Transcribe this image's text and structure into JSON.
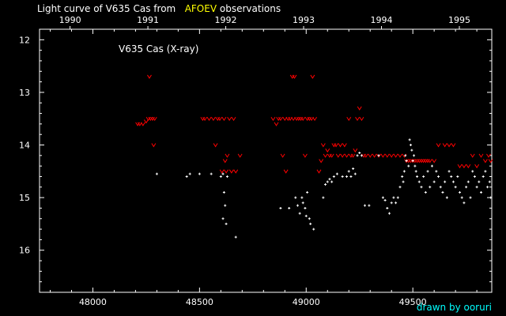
{
  "title": {
    "prefix": "Light curve of V635 Cas from",
    "highlight": "AFOEV",
    "suffix": "observations"
  },
  "credit": "drawn by ooruri",
  "colors": {
    "background": "#000000",
    "axes": "#ffffff",
    "upper_limit": "#ff0000",
    "detection": "#ffffff",
    "highlight": "#ffff00",
    "credit": "#00ffff"
  },
  "chart_data": {
    "type": "scatter",
    "title": "Light curve of V635 Cas from AFOEV observations",
    "plot_label": "V635 Cas (X-ray)",
    "xlabel": "",
    "ylabel": "",
    "xlim": [
      47750,
      49870
    ],
    "ylim": [
      16.8,
      11.8
    ],
    "x_ticks": [
      48000,
      48500,
      49000,
      49500
    ],
    "y_ticks": [
      12,
      13,
      14,
      15,
      16
    ],
    "top_axis": {
      "labels": [
        "1990",
        "1991",
        "1992",
        "1993",
        "1994",
        "1995"
      ],
      "values": [
        47893,
        48258,
        48623,
        48988,
        49353,
        49718
      ]
    },
    "series": [
      {
        "marker": "upper-limit",
        "color": "#ff0000",
        "points": [
          [
            48210,
            13.6
          ],
          [
            48220,
            13.6
          ],
          [
            48235,
            13.6
          ],
          [
            48250,
            13.55
          ],
          [
            48260,
            13.5
          ],
          [
            48265,
            12.7
          ],
          [
            48270,
            13.5
          ],
          [
            48280,
            13.5
          ],
          [
            48285,
            14.0
          ],
          [
            48290,
            13.5
          ],
          [
            48515,
            13.5
          ],
          [
            48525,
            13.5
          ],
          [
            48545,
            13.5
          ],
          [
            48565,
            13.5
          ],
          [
            48575,
            14.0
          ],
          [
            48585,
            13.5
          ],
          [
            48595,
            13.5
          ],
          [
            48605,
            14.5
          ],
          [
            48615,
            13.5
          ],
          [
            48620,
            14.3
          ],
          [
            48625,
            14.5
          ],
          [
            48630,
            14.2
          ],
          [
            48640,
            13.5
          ],
          [
            48650,
            14.5
          ],
          [
            48660,
            13.5
          ],
          [
            48670,
            14.5
          ],
          [
            48690,
            14.2
          ],
          [
            48845,
            13.5
          ],
          [
            48860,
            13.6
          ],
          [
            48870,
            13.5
          ],
          [
            48880,
            13.5
          ],
          [
            48890,
            14.2
          ],
          [
            48900,
            13.5
          ],
          [
            48905,
            14.5
          ],
          [
            48915,
            13.5
          ],
          [
            48925,
            13.5
          ],
          [
            48935,
            12.7
          ],
          [
            48940,
            13.5
          ],
          [
            48945,
            12.7
          ],
          [
            48955,
            13.5
          ],
          [
            48965,
            13.5
          ],
          [
            48975,
            13.5
          ],
          [
            48985,
            13.5
          ],
          [
            48995,
            14.2
          ],
          [
            49005,
            13.5
          ],
          [
            49015,
            13.5
          ],
          [
            49025,
            13.5
          ],
          [
            49030,
            12.7
          ],
          [
            49040,
            13.5
          ],
          [
            49060,
            14.5
          ],
          [
            49070,
            14.3
          ],
          [
            49080,
            14.0
          ],
          [
            49090,
            14.2
          ],
          [
            49100,
            14.1
          ],
          [
            49110,
            14.2
          ],
          [
            49120,
            14.2
          ],
          [
            49130,
            14.0
          ],
          [
            49140,
            14.0
          ],
          [
            49150,
            14.2
          ],
          [
            49160,
            14.0
          ],
          [
            49170,
            14.2
          ],
          [
            49180,
            14.0
          ],
          [
            49190,
            14.2
          ],
          [
            49200,
            13.5
          ],
          [
            49210,
            14.2
          ],
          [
            49220,
            14.2
          ],
          [
            49230,
            14.1
          ],
          [
            49240,
            13.5
          ],
          [
            49250,
            13.3
          ],
          [
            49260,
            13.5
          ],
          [
            49270,
            14.2
          ],
          [
            49280,
            14.2
          ],
          [
            49300,
            14.2
          ],
          [
            49320,
            14.2
          ],
          [
            49340,
            14.2
          ],
          [
            49360,
            14.2
          ],
          [
            49380,
            14.2
          ],
          [
            49400,
            14.2
          ],
          [
            49420,
            14.2
          ],
          [
            49440,
            14.2
          ],
          [
            49460,
            14.2
          ],
          [
            49470,
            14.3
          ],
          [
            49480,
            14.3
          ],
          [
            49490,
            14.3
          ],
          [
            49500,
            14.3
          ],
          [
            49510,
            14.3
          ],
          [
            49520,
            14.3
          ],
          [
            49530,
            14.3
          ],
          [
            49540,
            14.3
          ],
          [
            49550,
            14.3
          ],
          [
            49560,
            14.3
          ],
          [
            49570,
            14.3
          ],
          [
            49580,
            14.3
          ],
          [
            49600,
            14.3
          ],
          [
            49620,
            14.0
          ],
          [
            49650,
            14.0
          ],
          [
            49670,
            14.0
          ],
          [
            49690,
            14.0
          ],
          [
            49720,
            14.4
          ],
          [
            49740,
            14.4
          ],
          [
            49760,
            14.4
          ],
          [
            49780,
            14.2
          ],
          [
            49800,
            14.4
          ],
          [
            49820,
            14.2
          ],
          [
            49840,
            14.3
          ],
          [
            49855,
            14.2
          ],
          [
            49865,
            14.3
          ]
        ]
      },
      {
        "marker": "dot",
        "color": "#ffffff",
        "points": [
          [
            48300,
            14.55
          ],
          [
            48440,
            14.6
          ],
          [
            48455,
            14.55
          ],
          [
            48500,
            14.55
          ],
          [
            48555,
            14.55
          ],
          [
            48600,
            14.6
          ],
          [
            48610,
            14.55
          ],
          [
            48615,
            14.9
          ],
          [
            48620,
            15.15
          ],
          [
            48625,
            15.5
          ],
          [
            48610,
            15.4
          ],
          [
            48630,
            14.6
          ],
          [
            48670,
            15.75
          ],
          [
            48880,
            15.2
          ],
          [
            48920,
            15.2
          ],
          [
            48950,
            15.0
          ],
          [
            48960,
            15.15
          ],
          [
            48970,
            15.3
          ],
          [
            48980,
            15.0
          ],
          [
            48985,
            15.1
          ],
          [
            48995,
            15.2
          ],
          [
            49000,
            15.35
          ],
          [
            49005,
            14.9
          ],
          [
            49015,
            15.4
          ],
          [
            49020,
            15.5
          ],
          [
            49035,
            15.6
          ],
          [
            49080,
            15.0
          ],
          [
            49090,
            14.75
          ],
          [
            49100,
            14.7
          ],
          [
            49110,
            14.65
          ],
          [
            49120,
            14.7
          ],
          [
            49130,
            14.6
          ],
          [
            49145,
            14.55
          ],
          [
            49170,
            14.6
          ],
          [
            49190,
            14.6
          ],
          [
            49200,
            14.5
          ],
          [
            49210,
            14.6
          ],
          [
            49220,
            14.45
          ],
          [
            49230,
            14.55
          ],
          [
            49240,
            14.2
          ],
          [
            49250,
            14.15
          ],
          [
            49260,
            14.2
          ],
          [
            49275,
            15.15
          ],
          [
            49295,
            15.15
          ],
          [
            49340,
            14.2
          ],
          [
            49360,
            15.0
          ],
          [
            49370,
            15.05
          ],
          [
            49380,
            15.2
          ],
          [
            49390,
            15.3
          ],
          [
            49400,
            15.1
          ],
          [
            49410,
            15.0
          ],
          [
            49420,
            15.1
          ],
          [
            49430,
            15.0
          ],
          [
            49440,
            14.8
          ],
          [
            49450,
            14.6
          ],
          [
            49455,
            14.7
          ],
          [
            49460,
            14.5
          ],
          [
            49465,
            14.2
          ],
          [
            49470,
            14.3
          ],
          [
            49480,
            14.4
          ],
          [
            49485,
            13.9
          ],
          [
            49490,
            14.0
          ],
          [
            49495,
            14.1
          ],
          [
            49500,
            14.3
          ],
          [
            49505,
            14.2
          ],
          [
            49510,
            14.4
          ],
          [
            49515,
            14.5
          ],
          [
            49520,
            14.6
          ],
          [
            49530,
            14.7
          ],
          [
            49540,
            14.8
          ],
          [
            49550,
            14.6
          ],
          [
            49560,
            14.9
          ],
          [
            49570,
            14.5
          ],
          [
            49580,
            14.8
          ],
          [
            49590,
            14.4
          ],
          [
            49600,
            14.7
          ],
          [
            49610,
            14.5
          ],
          [
            49620,
            14.6
          ],
          [
            49630,
            14.8
          ],
          [
            49640,
            14.9
          ],
          [
            49650,
            14.7
          ],
          [
            49660,
            15.0
          ],
          [
            49670,
            14.5
          ],
          [
            49680,
            14.6
          ],
          [
            49690,
            14.7
          ],
          [
            49700,
            14.8
          ],
          [
            49710,
            14.6
          ],
          [
            49720,
            14.9
          ],
          [
            49730,
            15.0
          ],
          [
            49740,
            15.1
          ],
          [
            49750,
            14.8
          ],
          [
            49760,
            14.7
          ],
          [
            49770,
            15.0
          ],
          [
            49780,
            14.5
          ],
          [
            49790,
            14.6
          ],
          [
            49800,
            14.8
          ],
          [
            49810,
            14.7
          ],
          [
            49820,
            14.9
          ],
          [
            49830,
            14.6
          ],
          [
            49840,
            14.5
          ],
          [
            49850,
            14.8
          ],
          [
            49860,
            14.7
          ],
          [
            49865,
            15.0
          ]
        ]
      }
    ]
  }
}
